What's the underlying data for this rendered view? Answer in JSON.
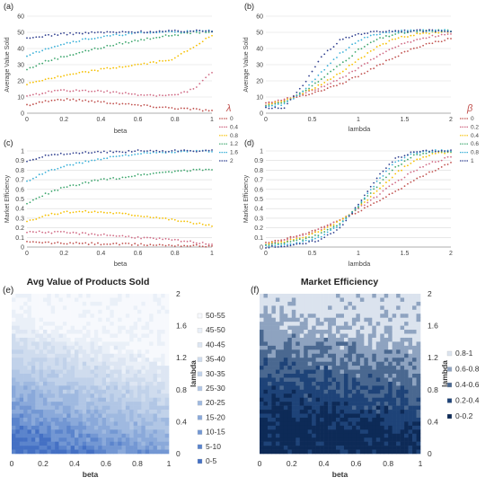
{
  "panels": {
    "a": {
      "tag": "(a)",
      "ylabel": "Average Value Sold",
      "xlabel": "beta"
    },
    "b": {
      "tag": "(b)",
      "ylabel": "Average Value Sold",
      "xlabel": "lambda"
    },
    "c": {
      "tag": "(c)",
      "ylabel": "Market Efficiency",
      "xlabel": "beta"
    },
    "d": {
      "tag": "(d)",
      "ylabel": "Market Efficiency",
      "xlabel": "lambda"
    },
    "e": {
      "tag": "(e)",
      "title": "Avg Value of Products Sold",
      "xlabel": "beta",
      "ylabel": "lambda"
    },
    "f": {
      "tag": "(f)",
      "title": "Market Efficiency",
      "xlabel": "beta",
      "ylabel": "lambda"
    }
  },
  "legends": {
    "lambda": {
      "symbol": "λ",
      "entries": [
        "0",
        "0.4",
        "0.8",
        "1.2",
        "1.6",
        "2"
      ]
    },
    "beta": {
      "symbol": "β",
      "entries": [
        "0",
        "0.2",
        "0.4",
        "0.6",
        "0.8",
        "1"
      ]
    }
  },
  "chart_data": [
    {
      "id": "a",
      "type": "scatter",
      "xlabel": "beta",
      "ylabel": "Average Value Sold",
      "xlim": [
        0,
        1
      ],
      "ylim": [
        0,
        60
      ],
      "xticks": [
        "0",
        "0.2",
        "0.4",
        "0.6",
        "0.8",
        "1"
      ],
      "yticks": [
        "0",
        "10",
        "20",
        "30",
        "40",
        "50",
        "60"
      ],
      "grid": true,
      "legend_position": "right",
      "x": [
        0,
        0.1,
        0.2,
        0.3,
        0.4,
        0.5,
        0.6,
        0.7,
        0.8,
        0.9,
        1.0
      ],
      "series": [
        {
          "name": "0",
          "color": "#c0504d",
          "y": [
            5,
            7.5,
            8.5,
            8,
            7,
            6,
            5,
            4,
            3.2,
            2.5,
            1.5
          ]
        },
        {
          "name": "0.4",
          "color": "#d06a84",
          "y": [
            10,
            13,
            14,
            14,
            13.5,
            12.5,
            11.5,
            11,
            11,
            15,
            25
          ]
        },
        {
          "name": "0.8",
          "color": "#f6c000",
          "y": [
            18,
            21,
            23,
            25,
            27,
            28.5,
            30,
            31.5,
            34,
            41,
            48
          ]
        },
        {
          "name": "1.2",
          "color": "#3aa56b",
          "y": [
            27,
            32,
            35,
            38,
            40.5,
            43,
            45,
            47,
            48.5,
            50,
            50.5
          ]
        },
        {
          "name": "1.6",
          "color": "#3ab0d8",
          "y": [
            35,
            40,
            43,
            45.5,
            47,
            48.5,
            49.5,
            50,
            50.5,
            50.5,
            51
          ]
        },
        {
          "name": "2",
          "color": "#2f3f8f",
          "y": [
            46,
            48,
            49,
            49.5,
            50,
            50,
            50.3,
            50.5,
            50.7,
            50.8,
            51
          ]
        }
      ]
    },
    {
      "id": "b",
      "type": "scatter",
      "xlabel": "lambda",
      "ylabel": "Average Value Sold",
      "xlim": [
        0,
        2
      ],
      "ylim": [
        0,
        60
      ],
      "xticks": [
        "0",
        "0.5",
        "1",
        "1.5",
        "2"
      ],
      "yticks": [
        "0",
        "10",
        "20",
        "30",
        "40",
        "50",
        "60"
      ],
      "grid": true,
      "legend_position": "right",
      "x": [
        0,
        0.2,
        0.4,
        0.6,
        0.8,
        1.0,
        1.2,
        1.4,
        1.6,
        1.8,
        2.0
      ],
      "series": [
        {
          "name": "0",
          "color": "#c0504d",
          "y": [
            6,
            8.5,
            11,
            14,
            18,
            23,
            29,
            35,
            40,
            43.5,
            46
          ]
        },
        {
          "name": "0.2",
          "color": "#d06a84",
          "y": [
            5.5,
            8.5,
            12,
            16,
            21,
            28,
            35,
            41,
            45,
            47.5,
            49
          ]
        },
        {
          "name": "0.4",
          "color": "#f6c000",
          "y": [
            5,
            8,
            12.5,
            18,
            25,
            33,
            40.5,
            46,
            48.5,
            50,
            50.5
          ]
        },
        {
          "name": "0.6",
          "color": "#3aa56b",
          "y": [
            4.5,
            7,
            13,
            21,
            30,
            39,
            45.5,
            49,
            50.5,
            51,
            51
          ]
        },
        {
          "name": "0.8",
          "color": "#3ab0d8",
          "y": [
            4,
            5.5,
            13,
            25,
            37,
            45,
            49,
            50.5,
            51,
            51,
            51
          ]
        },
        {
          "name": "1",
          "color": "#2f3f8f",
          "y": [
            3,
            3.5,
            17,
            35,
            45,
            49,
            50.5,
            51,
            51,
            51,
            51
          ]
        }
      ]
    },
    {
      "id": "c",
      "type": "scatter",
      "xlabel": "beta",
      "ylabel": "Market Efficiency",
      "xlim": [
        0,
        1
      ],
      "ylim": [
        0,
        1
      ],
      "xticks": [
        "0",
        "0.2",
        "0.4",
        "0.6",
        "0.8",
        "1"
      ],
      "yticks": [
        "0",
        "0.1",
        "0.2",
        "0.3",
        "0.4",
        "0.5",
        "0.6",
        "0.7",
        "0.8",
        "0.9",
        "1"
      ],
      "grid": true,
      "legend_position": "right",
      "x": [
        0,
        0.1,
        0.2,
        0.3,
        0.4,
        0.5,
        0.6,
        0.7,
        0.8,
        0.9,
        1.0
      ],
      "series": [
        {
          "name": "0",
          "color": "#c0504d",
          "y": [
            0.05,
            0.045,
            0.04,
            0.037,
            0.033,
            0.03,
            0.026,
            0.022,
            0.018,
            0.014,
            0.01
          ]
        },
        {
          "name": "0.4",
          "color": "#d06a84",
          "y": [
            0.16,
            0.155,
            0.15,
            0.14,
            0.13,
            0.115,
            0.1,
            0.085,
            0.07,
            0.05,
            0.03
          ]
        },
        {
          "name": "0.8",
          "color": "#f6c000",
          "y": [
            0.27,
            0.33,
            0.36,
            0.37,
            0.365,
            0.35,
            0.33,
            0.31,
            0.28,
            0.25,
            0.22
          ]
        },
        {
          "name": "1.2",
          "color": "#3aa56b",
          "y": [
            0.45,
            0.55,
            0.62,
            0.66,
            0.7,
            0.72,
            0.75,
            0.77,
            0.79,
            0.8,
            0.81
          ]
        },
        {
          "name": "1.6",
          "color": "#3ab0d8",
          "y": [
            0.68,
            0.78,
            0.84,
            0.88,
            0.92,
            0.95,
            0.97,
            0.98,
            0.99,
            0.995,
            1.0
          ]
        },
        {
          "name": "2",
          "color": "#2f3f8f",
          "y": [
            0.9,
            0.95,
            0.97,
            0.98,
            0.99,
            0.99,
            1.0,
            1.0,
            1.0,
            1.0,
            1.0
          ]
        }
      ]
    },
    {
      "id": "d",
      "type": "scatter",
      "xlabel": "lambda",
      "ylabel": "Market Efficiency",
      "xlim": [
        0,
        2
      ],
      "ylim": [
        0,
        1
      ],
      "xticks": [
        "0",
        "0.5",
        "1",
        "1.5",
        "2"
      ],
      "yticks": [
        "0",
        "0.1",
        "0.2",
        "0.3",
        "0.4",
        "0.5",
        "0.6",
        "0.7",
        "0.8",
        "0.9",
        "1"
      ],
      "grid": true,
      "legend_position": "right",
      "x": [
        0,
        0.2,
        0.4,
        0.6,
        0.8,
        1.0,
        1.2,
        1.4,
        1.6,
        1.8,
        2.0
      ],
      "series": [
        {
          "name": "0",
          "color": "#c0504d",
          "y": [
            0.04,
            0.08,
            0.13,
            0.2,
            0.28,
            0.37,
            0.47,
            0.58,
            0.69,
            0.79,
            0.88
          ]
        },
        {
          "name": "0.2",
          "color": "#d06a84",
          "y": [
            0.03,
            0.07,
            0.12,
            0.19,
            0.28,
            0.4,
            0.53,
            0.67,
            0.79,
            0.88,
            0.94
          ]
        },
        {
          "name": "0.4",
          "color": "#f6c000",
          "y": [
            0.03,
            0.06,
            0.1,
            0.17,
            0.27,
            0.41,
            0.58,
            0.76,
            0.9,
            0.97,
            0.99
          ]
        },
        {
          "name": "0.6",
          "color": "#3aa56b",
          "y": [
            0.02,
            0.04,
            0.08,
            0.14,
            0.25,
            0.42,
            0.63,
            0.83,
            0.95,
            0.99,
            1.0
          ]
        },
        {
          "name": "0.8",
          "color": "#3ab0d8",
          "y": [
            0.01,
            0.02,
            0.05,
            0.11,
            0.23,
            0.43,
            0.68,
            0.88,
            0.98,
            1.0,
            1.0
          ]
        },
        {
          "name": "1",
          "color": "#2f3f8f",
          "y": [
            0.0,
            0.01,
            0.03,
            0.08,
            0.2,
            0.44,
            0.72,
            0.92,
            0.99,
            1.0,
            1.0
          ]
        }
      ]
    },
    {
      "id": "e",
      "type": "heatmap",
      "title": "Avg Value of Products Sold",
      "xlabel": "beta",
      "ylabel": "lambda",
      "xlim": [
        0,
        1
      ],
      "ylim": [
        0,
        2
      ],
      "xticks": [
        "0",
        "0.2",
        "0.4",
        "0.6",
        "0.8",
        "1"
      ],
      "yticks": [
        "0",
        "0.4",
        "0.8",
        "1.2",
        "1.6",
        "2"
      ],
      "legend_position": "right",
      "bins": [
        "50-55",
        "45-50",
        "40-45",
        "35-40",
        "30-35",
        "25-30",
        "20-25",
        "15-20",
        "10-15",
        "5-10",
        "0-5"
      ],
      "bin_colors": [
        "#f7f9fd",
        "#eaf0f8",
        "#dde6f3",
        "#cfdcee",
        "#c1d2ea",
        "#b1c6e5",
        "#9fb9e0",
        "#8aa9da",
        "#7397d3",
        "#5b84cc",
        "#4470c4"
      ]
    },
    {
      "id": "f",
      "type": "heatmap",
      "title": "Market Efficiency",
      "xlabel": "beta",
      "ylabel": "lambda",
      "xlim": [
        0,
        1
      ],
      "ylim": [
        0,
        2
      ],
      "xticks": [
        "0",
        "0.2",
        "0.4",
        "0.6",
        "0.8",
        "1"
      ],
      "yticks": [
        "0",
        "0.4",
        "0.8",
        "1.2",
        "1.6",
        "2"
      ],
      "legend_position": "right",
      "bins": [
        "0.8-1",
        "0.6-0.8",
        "0.4-0.6",
        "0.2-0.4",
        "0-0.2"
      ],
      "bin_colors": [
        "#dbe3ee",
        "#8ea3c0",
        "#4a6890",
        "#1e4378",
        "#0d2a57"
      ]
    }
  ]
}
